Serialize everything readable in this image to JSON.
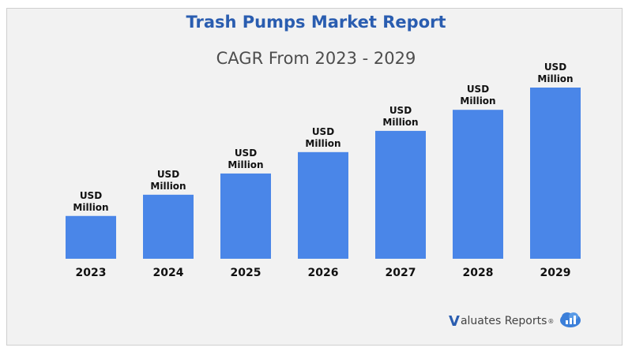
{
  "header": {
    "title": "Trash Pumps Market Report",
    "subtitle": "CAGR From 2023 - 2029"
  },
  "chart_data": {
    "type": "bar",
    "title": "Trash Pumps Market Report",
    "subtitle": "CAGR From 2023 - 2029",
    "categories": [
      "2023",
      "2024",
      "2025",
      "2026",
      "2027",
      "2028",
      "2029"
    ],
    "relative_heights": [
      0.25,
      0.374,
      0.498,
      0.623,
      0.747,
      0.87,
      1.0
    ],
    "data_labels": [
      [
        "USD",
        "Million"
      ],
      [
        "USD",
        "Million"
      ],
      [
        "USD",
        "Million"
      ],
      [
        "USD",
        "Million"
      ],
      [
        "USD",
        "Million"
      ],
      [
        "USD",
        "Million"
      ],
      [
        "USD",
        "Million"
      ]
    ],
    "grid": false,
    "bar_color": "#4a86e8"
  },
  "brand": {
    "v": "V",
    "name": "aluates Reports",
    "reg": "®",
    "icon": "cloud-chart-icon"
  },
  "colors": {
    "title": "#2a5db0",
    "bar": "#4a86e8",
    "background": "#f2f2f2"
  }
}
